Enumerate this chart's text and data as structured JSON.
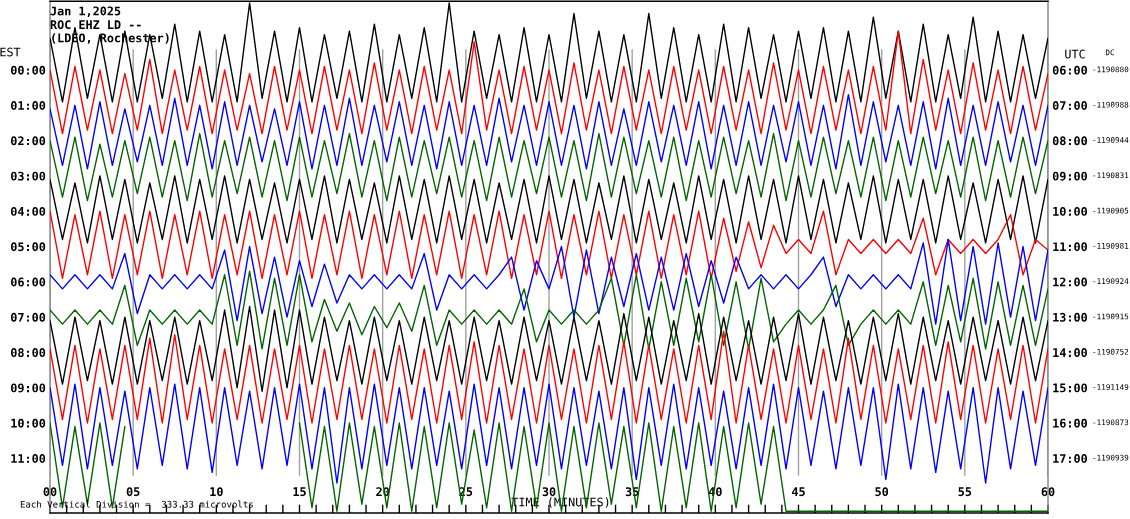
{
  "chart_data": {
    "type": "line",
    "title": "Jan 1,2025",
    "subtitle": "ROC EHZ LD --\n(LDEO, Rochester)",
    "xlabel": "TIME (MINUTES)",
    "ylabel": "EST",
    "y2label": "UTC",
    "annotations": [
      "Each Vertical Division =  333.33 microvolts",
      "DC",
      "-1190880",
      "-1190988",
      "-1190944",
      "-1190831",
      "-1190905",
      "-1190981",
      "-1190924",
      "-1190915",
      "-1190752",
      "-1191149",
      "-1190873",
      "-1190939"
    ],
    "line_style": "solid",
    "grid": "x",
    "xlim": [
      0,
      60
    ],
    "xticks": [
      {
        "value": 0,
        "label": "00"
      },
      {
        "value": 1,
        "label": null
      },
      {
        "value": 2,
        "label": null
      },
      {
        "value": 3,
        "label": null
      },
      {
        "value": 4,
        "label": null
      },
      {
        "value": 5,
        "label": "05"
      },
      {
        "value": 6,
        "label": null
      },
      {
        "value": 7,
        "label": null
      },
      {
        "value": 8,
        "label": null
      },
      {
        "value": 9,
        "label": null
      },
      {
        "value": 10,
        "label": "10"
      },
      {
        "value": 11,
        "label": null
      },
      {
        "value": 12,
        "label": null
      },
      {
        "value": 13,
        "label": null
      },
      {
        "value": 14,
        "label": null
      },
      {
        "value": 15,
        "label": "15"
      },
      {
        "value": 16,
        "label": null
      },
      {
        "value": 17,
        "label": null
      },
      {
        "value": 18,
        "label": null
      },
      {
        "value": 19,
        "label": null
      },
      {
        "value": 20,
        "label": "20"
      },
      {
        "value": 21,
        "label": null
      },
      {
        "value": 22,
        "label": null
      },
      {
        "value": 23,
        "label": null
      },
      {
        "value": 24,
        "label": null
      },
      {
        "value": 25,
        "label": "25"
      },
      {
        "value": 26,
        "label": null
      },
      {
        "value": 27,
        "label": null
      },
      {
        "value": 28,
        "label": null
      },
      {
        "value": 29,
        "label": null
      },
      {
        "value": 30,
        "label": "30"
      },
      {
        "value": 31,
        "label": null
      },
      {
        "value": 32,
        "label": null
      },
      {
        "value": 33,
        "label": null
      },
      {
        "value": 34,
        "label": null
      },
      {
        "value": 35,
        "label": "35"
      },
      {
        "value": 36,
        "label": null
      },
      {
        "value": 37,
        "label": null
      },
      {
        "value": 38,
        "label": null
      },
      {
        "value": 39,
        "label": null
      },
      {
        "value": 40,
        "label": "40"
      },
      {
        "value": 41,
        "label": null
      },
      {
        "value": 42,
        "label": null
      },
      {
        "value": 43,
        "label": null
      },
      {
        "value": 44,
        "label": null
      },
      {
        "value": 45,
        "label": "45"
      },
      {
        "value": 46,
        "label": null
      },
      {
        "value": 47,
        "label": null
      },
      {
        "value": 48,
        "label": null
      },
      {
        "value": 49,
        "label": null
      },
      {
        "value": 50,
        "label": "50"
      },
      {
        "value": 51,
        "label": null
      },
      {
        "value": 52,
        "label": null
      },
      {
        "value": 53,
        "label": null
      },
      {
        "value": 54,
        "label": null
      },
      {
        "value": 55,
        "label": "55"
      },
      {
        "value": 56,
        "label": null
      },
      {
        "value": 57,
        "label": null
      },
      {
        "value": 58,
        "label": null
      },
      {
        "value": 59,
        "label": null
      },
      {
        "value": 60,
        "label": "60"
      }
    ],
    "ylim": [
      12.55,
      -1.95
    ],
    "yticks": [
      {
        "value": 0,
        "label": "00:00"
      },
      {
        "value": 1,
        "label": "01:00"
      },
      {
        "value": 2,
        "label": "02:00"
      },
      {
        "value": 3,
        "label": "03:00"
      },
      {
        "value": 4,
        "label": "04:00"
      },
      {
        "value": 5,
        "label": "05:00"
      },
      {
        "value": 6,
        "label": "06:00"
      },
      {
        "value": 7,
        "label": "07:00"
      },
      {
        "value": 8,
        "label": "08:00"
      },
      {
        "value": 9,
        "label": "09:00"
      },
      {
        "value": 10,
        "label": "10:00"
      },
      {
        "value": 11,
        "label": "11:00"
      }
    ],
    "y2lim": [
      18.55,
      4.05
    ],
    "y2ticks": [
      {
        "value": 6,
        "label": "06:00"
      },
      {
        "value": 7,
        "label": "07:00"
      },
      {
        "value": 8,
        "label": "08:00"
      },
      {
        "value": 9,
        "label": "09:00"
      },
      {
        "value": 10,
        "label": "10:00"
      },
      {
        "value": 11,
        "label": "11:00"
      },
      {
        "value": 12,
        "label": "12:00"
      },
      {
        "value": 13,
        "label": "13:00"
      },
      {
        "value": 14,
        "label": "14:00"
      },
      {
        "value": 15,
        "label": "15:00"
      },
      {
        "value": 16,
        "label": "16:00"
      },
      {
        "value": 17,
        "label": "17:00"
      }
    ],
    "x": [
      0,
      0.75,
      1.5,
      2.25,
      3,
      3.75,
      4.5,
      5.25,
      6,
      6.75,
      7.5,
      8.25,
      9,
      9.75,
      10.5,
      11.25,
      12,
      12.75,
      13.5,
      14.25,
      15,
      15.75,
      16.5,
      17.25,
      18,
      18.75,
      19.5,
      20.25,
      21,
      21.75,
      22.5,
      23.25,
      24,
      24.75,
      25.5,
      26.25,
      27,
      27.75,
      28.5,
      29.25,
      30,
      30.75,
      31.5,
      32.25,
      33,
      33.75,
      34.5,
      35.25,
      36,
      36.75,
      37.5,
      38.25,
      39,
      39.75,
      40.5,
      41.25,
      42,
      42.75,
      43.5,
      44.25,
      45,
      45.75,
      46.5,
      47.25,
      48,
      48.75,
      49.5,
      50.25,
      51,
      51.75,
      52.5,
      53.25,
      54,
      54.75,
      55.5,
      56.25,
      57,
      57.75,
      58.5,
      59.25,
      60
    ],
    "series": [
      {
        "color": "#000000",
        "values": [
          -0.9,
          0.9,
          -1.2,
          0.8,
          -1.0,
          0.9,
          -1.1,
          0.9,
          -1.0,
          0.8,
          -1.3,
          0.9,
          -1.1,
          0.9,
          -1.0,
          0.9,
          -1.9,
          0.8,
          -1.1,
          0.9,
          -1.2,
          0.9,
          -1.0,
          0.8,
          -1.1,
          0.9,
          -1.3,
          0.9,
          -1.0,
          0.8,
          -1.2,
          0.9,
          -1.9,
          0.9,
          -1.1,
          0.8,
          -1.0,
          0.9,
          -1.2,
          0.9,
          -1.0,
          0.9,
          -1.6,
          0.8,
          -1.1,
          0.9,
          -1.0,
          0.9,
          -1.6,
          0.8,
          -1.2,
          0.9,
          -1.0,
          0.9,
          -1.3,
          0.9,
          -1.2,
          0.8,
          -1.0,
          0.9,
          -1.1,
          0.8,
          -1.2,
          0.9,
          -1.1,
          0.9,
          -1.5,
          0.8,
          -1.1,
          0.9,
          -1.3,
          0.9,
          -1.0,
          0.8,
          -1.5,
          0.9,
          -1.1,
          0.9,
          -1.0,
          0.8,
          -0.9
        ]
      },
      {
        "color": "#ff0000",
        "values": [
          0.0,
          1.8,
          -0.1,
          1.7,
          0.0,
          1.8,
          0.1,
          1.7,
          -0.3,
          1.8,
          0.0,
          1.7,
          -0.1,
          1.8,
          0.0,
          1.7,
          0.1,
          1.8,
          -0.1,
          1.7,
          0.0,
          1.8,
          -0.1,
          1.7,
          0.0,
          1.8,
          -0.2,
          1.7,
          0.0,
          1.8,
          -0.1,
          1.7,
          0.0,
          1.8,
          -0.8,
          1.7,
          0.0,
          1.8,
          -0.1,
          1.7,
          0.0,
          1.8,
          -0.2,
          1.7,
          0.0,
          1.8,
          -0.1,
          1.7,
          0.0,
          1.8,
          -0.1,
          1.7,
          0.0,
          1.8,
          -0.1,
          1.7,
          0.0,
          1.8,
          -0.2,
          1.7,
          0.0,
          1.8,
          -0.1,
          1.7,
          0.0,
          1.8,
          -0.1,
          1.7,
          -1.1,
          1.8,
          -0.3,
          1.7,
          0.0,
          1.8,
          -0.2,
          1.7,
          0.0,
          1.8,
          -0.1,
          1.7,
          0.1
        ]
      },
      {
        "color": "#0000ff",
        "values": [
          1.1,
          2.7,
          1.0,
          2.8,
          0.9,
          2.7,
          1.1,
          2.6,
          1.0,
          2.7,
          0.8,
          2.7,
          1.0,
          2.8,
          0.9,
          2.7,
          1.0,
          2.6,
          1.1,
          2.7,
          0.9,
          2.8,
          1.0,
          2.7,
          0.8,
          2.7,
          1.0,
          2.6,
          0.9,
          2.7,
          1.0,
          2.8,
          0.9,
          2.7,
          1.0,
          2.7,
          0.8,
          2.6,
          1.0,
          2.7,
          0.9,
          2.7,
          1.0,
          2.8,
          0.9,
          2.7,
          1.1,
          2.7,
          0.9,
          2.6,
          1.0,
          2.7,
          0.9,
          2.8,
          1.0,
          2.7,
          0.9,
          2.7,
          1.0,
          2.6,
          0.9,
          2.7,
          1.0,
          2.8,
          0.7,
          2.7,
          0.9,
          2.6,
          1.0,
          2.7,
          0.9,
          2.8,
          0.8,
          2.7,
          1.0,
          2.7,
          0.9,
          2.6,
          1.0,
          2.7,
          1.0
        ]
      },
      {
        "color": "#006400",
        "values": [
          2.0,
          3.6,
          1.9,
          3.7,
          2.1,
          3.6,
          2.0,
          3.5,
          1.9,
          3.6,
          2.0,
          3.7,
          1.8,
          3.6,
          2.0,
          3.5,
          1.9,
          3.6,
          2.0,
          3.7,
          1.9,
          3.6,
          2.0,
          3.5,
          1.8,
          3.6,
          2.0,
          3.7,
          1.9,
          3.6,
          2.0,
          3.5,
          1.9,
          3.6,
          2.0,
          3.7,
          1.9,
          3.6,
          2.0,
          3.5,
          1.9,
          3.6,
          2.0,
          3.7,
          1.8,
          3.6,
          1.9,
          3.5,
          2.0,
          3.6,
          1.9,
          3.7,
          2.0,
          3.6,
          1.9,
          3.5,
          2.0,
          3.6,
          1.8,
          3.7,
          2.0,
          3.6,
          1.9,
          3.5,
          2.0,
          3.6,
          1.9,
          3.7,
          2.0,
          3.6,
          1.9,
          3.5,
          2.0,
          3.6,
          1.9,
          3.7,
          2.0,
          3.6,
          1.9,
          3.5,
          2.0
        ]
      },
      {
        "color": "#000000",
        "values": [
          3.1,
          4.8,
          3.2,
          4.9,
          3.0,
          4.8,
          3.1,
          4.9,
          3.2,
          4.8,
          3.0,
          4.9,
          3.1,
          4.8,
          3.0,
          4.9,
          3.1,
          4.8,
          3.2,
          4.9,
          3.1,
          4.8,
          3.0,
          4.9,
          3.1,
          4.8,
          3.2,
          4.9,
          3.0,
          4.8,
          3.1,
          4.9,
          3.0,
          4.8,
          3.1,
          4.9,
          3.2,
          4.8,
          3.1,
          4.9,
          3.0,
          4.8,
          3.1,
          4.9,
          3.2,
          4.8,
          3.0,
          4.9,
          3.1,
          4.8,
          3.2,
          4.9,
          3.0,
          4.8,
          3.1,
          4.9,
          3.0,
          4.8,
          3.1,
          4.9,
          3.0,
          4.8,
          3.1,
          4.9,
          3.2,
          4.8,
          3.0,
          4.9,
          3.1,
          4.8,
          3.1,
          4.9,
          3.0,
          4.8,
          3.2,
          4.9,
          3.1,
          4.8,
          3.0,
          4.9,
          3.1
        ]
      },
      {
        "color": "#ff0000",
        "values": [
          4.0,
          5.9,
          4.1,
          5.8,
          4.0,
          5.9,
          4.1,
          5.8,
          4.0,
          5.9,
          4.1,
          5.8,
          4.0,
          5.9,
          4.1,
          5.8,
          4.0,
          5.9,
          4.1,
          5.8,
          4.0,
          5.9,
          4.1,
          5.8,
          4.0,
          5.9,
          4.1,
          5.8,
          4.0,
          5.9,
          4.1,
          5.8,
          4.0,
          5.9,
          4.1,
          5.8,
          4.0,
          5.9,
          4.1,
          5.8,
          4.0,
          5.9,
          4.1,
          5.8,
          4.0,
          5.9,
          4.1,
          5.8,
          4.0,
          5.9,
          4.1,
          5.8,
          4.0,
          5.9,
          4.2,
          5.7,
          4.3,
          5.6,
          4.4,
          5.2,
          4.8,
          5.2,
          4.0,
          5.8,
          4.8,
          5.2,
          4.8,
          5.2,
          4.8,
          5.2,
          4.2,
          5.8,
          4.8,
          5.2,
          4.8,
          5.2,
          4.8,
          4.1,
          5.8,
          4.8,
          5.1
        ]
      },
      {
        "color": "#0000ff",
        "values": [
          5.8,
          6.2,
          5.8,
          6.2,
          5.8,
          6.2,
          5.2,
          6.9,
          5.8,
          6.2,
          5.8,
          6.2,
          5.8,
          6.2,
          5.1,
          7.1,
          5.0,
          6.9,
          5.3,
          7.0,
          5.4,
          6.7,
          5.5,
          6.6,
          5.8,
          6.2,
          5.8,
          6.2,
          5.8,
          6.2,
          5.2,
          6.8,
          5.8,
          6.2,
          5.8,
          6.2,
          5.8,
          5.3,
          6.8,
          5.4,
          6.2,
          5.0,
          7.0,
          5.1,
          6.9,
          5.3,
          6.7,
          5.2,
          6.8,
          5.3,
          6.8,
          5.2,
          6.7,
          5.4,
          6.6,
          5.3,
          6.2,
          5.8,
          6.2,
          5.8,
          6.2,
          5.8,
          5.3,
          6.7,
          5.8,
          6.2,
          5.8,
          6.2,
          5.8,
          6.2,
          4.9,
          7.2,
          4.8,
          7.1,
          5.0,
          7.2,
          4.9,
          7.0,
          5.0,
          7.1,
          5.1
        ]
      },
      {
        "color": "#006400",
        "values": [
          6.8,
          7.2,
          6.8,
          7.2,
          6.8,
          7.2,
          6.1,
          7.8,
          6.8,
          7.2,
          6.8,
          7.2,
          6.8,
          7.2,
          5.8,
          7.8,
          5.7,
          7.9,
          5.9,
          7.8,
          5.8,
          7.7,
          6.5,
          7.4,
          6.6,
          7.5,
          6.7,
          7.3,
          6.6,
          7.4,
          6.1,
          7.8,
          6.8,
          7.2,
          6.8,
          7.2,
          6.8,
          7.2,
          6.2,
          7.7,
          6.8,
          7.2,
          6.8,
          7.2,
          6.8,
          5.9,
          7.8,
          5.8,
          7.9,
          6.0,
          7.8,
          5.9,
          7.7,
          5.8,
          7.8,
          6.0,
          7.9,
          5.9,
          7.7,
          7.2,
          6.8,
          7.2,
          6.8,
          6.1,
          7.8,
          7.2,
          6.8,
          7.2,
          6.8,
          7.2,
          6.0,
          7.8,
          6.1,
          7.7,
          5.9,
          7.9,
          6.0,
          7.8,
          6.1,
          7.8,
          6.2
        ]
      },
      {
        "color": "#000000",
        "values": [
          7.1,
          8.9,
          7.0,
          8.8,
          7.1,
          8.9,
          7.0,
          8.9,
          7.1,
          8.8,
          7.0,
          8.9,
          7.1,
          8.8,
          6.8,
          9.0,
          6.7,
          9.1,
          6.8,
          9.0,
          6.8,
          8.9,
          7.0,
          8.8,
          7.1,
          8.9,
          7.0,
          8.8,
          7.1,
          8.9,
          7.0,
          8.8,
          7.1,
          8.9,
          7.0,
          8.8,
          7.1,
          8.9,
          7.0,
          8.8,
          7.1,
          8.9,
          7.0,
          8.8,
          7.1,
          8.9,
          6.9,
          8.8,
          7.0,
          8.9,
          7.1,
          8.8,
          6.9,
          8.9,
          7.0,
          8.8,
          7.1,
          8.9,
          7.0,
          8.8,
          6.9,
          8.9,
          7.0,
          8.8,
          7.1,
          8.9,
          7.0,
          8.8,
          6.9,
          8.9,
          7.0,
          8.8,
          7.1,
          8.9,
          7.0,
          8.8,
          7.1,
          8.9,
          7.0,
          8.8,
          7.1
        ]
      },
      {
        "color": "#ff0000",
        "values": [
          7.9,
          9.9,
          7.8,
          10.0,
          7.9,
          9.9,
          7.8,
          9.9,
          7.6,
          10.0,
          7.5,
          9.9,
          7.8,
          10.0,
          7.9,
          9.9,
          7.8,
          10.0,
          7.9,
          9.9,
          7.8,
          10.0,
          7.9,
          9.9,
          7.8,
          9.9,
          7.9,
          10.0,
          7.8,
          9.9,
          7.9,
          10.0,
          7.8,
          9.9,
          7.7,
          10.0,
          7.8,
          9.9,
          7.9,
          10.0,
          7.8,
          9.9,
          7.9,
          10.0,
          7.8,
          9.9,
          7.7,
          10.0,
          7.8,
          9.9,
          7.9,
          10.0,
          7.8,
          9.9,
          7.4,
          10.0,
          7.8,
          9.9,
          7.9,
          10.0,
          7.8,
          9.9,
          7.9,
          10.0,
          7.6,
          9.9,
          7.8,
          10.0,
          7.9,
          9.9,
          7.8,
          10.0,
          7.7,
          9.9,
          7.8,
          10.0,
          7.9,
          9.9,
          7.8,
          10.0,
          7.9
        ]
      },
      {
        "color": "#0000ff",
        "values": [
          9.0,
          11.2,
          8.9,
          11.3,
          9.0,
          11.2,
          9.1,
          11.3,
          9.0,
          11.2,
          8.9,
          11.3,
          9.0,
          11.4,
          9.0,
          11.2,
          9.1,
          11.3,
          9.0,
          11.2,
          8.9,
          11.3,
          9.0,
          11.7,
          9.0,
          11.3,
          8.9,
          11.2,
          9.0,
          11.3,
          9.0,
          11.2,
          9.1,
          11.3,
          8.9,
          11.2,
          9.0,
          11.3,
          9.0,
          11.2,
          8.9,
          11.3,
          9.0,
          11.2,
          9.1,
          11.3,
          9.0,
          11.6,
          9.0,
          11.2,
          8.9,
          11.3,
          9.0,
          11.2,
          9.1,
          11.3,
          9.0,
          11.2,
          8.9,
          11.3,
          9.0,
          11.2,
          9.1,
          11.3,
          9.0,
          11.2,
          9.0,
          11.6,
          8.9,
          11.3,
          9.0,
          11.4,
          9.1,
          11.3,
          9.0,
          11.7,
          9.0,
          11.3,
          9.1,
          11.2,
          9.0
        ]
      },
      {
        "color": "#006400",
        "values": [
          10.0,
          12.4,
          10.1,
          12.3,
          10.0,
          12.4,
          10.1,
          null,
          null,
          null,
          null,
          null,
          null,
          null,
          null,
          null,
          null,
          null,
          null,
          null,
          10.0,
          12.4,
          10.1,
          12.5,
          10.0,
          12.3,
          10.1,
          12.4,
          10.0,
          12.5,
          10.1,
          12.4,
          10.0,
          12.3,
          10.2,
          12.4,
          10.0,
          12.5,
          10.1,
          12.4,
          10.0,
          12.5,
          10.1,
          12.4,
          10.0,
          12.3,
          10.1,
          12.4,
          10.0,
          12.5,
          10.1,
          12.4,
          10.0,
          12.5,
          10.1,
          12.4,
          10.0,
          12.3,
          10.1,
          12.5,
          12.5,
          12.5,
          12.5,
          12.5,
          12.5,
          12.5,
          12.5,
          12.5,
          12.5,
          12.5,
          12.5,
          12.5,
          12.5,
          12.5,
          12.5,
          12.5,
          12.5,
          12.5,
          12.5,
          12.5,
          12.5
        ]
      }
    ]
  }
}
